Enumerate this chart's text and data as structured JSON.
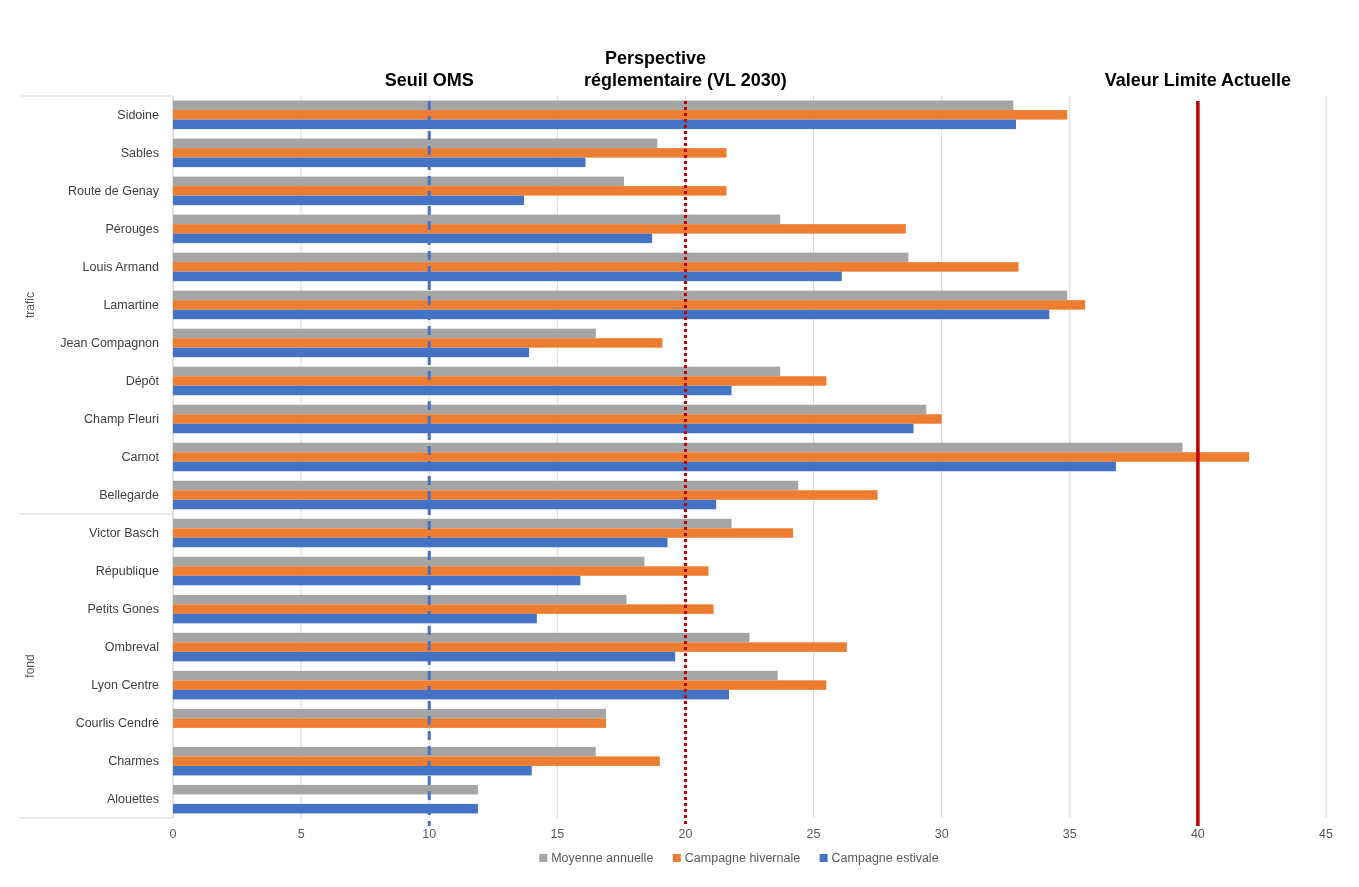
{
  "chart_data": {
    "type": "bar",
    "orientation": "horizontal",
    "categories": [
      "Sidoine",
      "Sables",
      "Route de Genay",
      "Pérouges",
      "Louis Armand",
      "Lamartine",
      "Jean Compagnon",
      "Dépôt",
      "Champ Fleuri",
      "Carnot",
      "Bellegarde",
      "Victor Basch",
      "République",
      "Petits Gones",
      "Ombreval",
      "Lyon Centre",
      "Courlis Cendré",
      "Charmes",
      "Alouettes"
    ],
    "series": [
      {
        "name": "Moyenne annuelle",
        "color": "#a5a5a5",
        "values": [
          32.8,
          18.9,
          17.6,
          23.7,
          28.7,
          34.9,
          16.5,
          23.7,
          29.4,
          39.4,
          24.4,
          21.8,
          18.4,
          17.7,
          22.5,
          23.6,
          16.9,
          16.5,
          11.9
        ]
      },
      {
        "name": "Campagne hivernale",
        "color": "#ed7d31",
        "values": [
          34.9,
          21.6,
          21.6,
          28.6,
          33.0,
          35.6,
          19.1,
          25.5,
          30.0,
          42.0,
          27.5,
          24.2,
          20.9,
          21.1,
          26.3,
          25.5,
          16.9,
          19.0,
          null
        ]
      },
      {
        "name": "Campagne estivale",
        "color": "#4472c4",
        "values": [
          32.9,
          16.1,
          13.7,
          18.7,
          26.1,
          34.2,
          13.9,
          21.8,
          28.9,
          36.8,
          21.2,
          19.3,
          15.9,
          14.2,
          19.6,
          21.7,
          null,
          14.0,
          11.9
        ]
      }
    ],
    "xlim": [
      0,
      45
    ],
    "xticks": [
      0,
      5,
      10,
      15,
      20,
      25,
      30,
      35,
      40,
      45
    ],
    "grid": "x",
    "legend": "bottom",
    "ref_lines": [
      {
        "axis": "x",
        "value": 10,
        "label": "Seuil OMS",
        "color": "#4472c4",
        "line_style": "dashed"
      },
      {
        "axis": "x",
        "value": 20,
        "label": "Perspective réglementaire (VL 2030)",
        "color": "#c00000",
        "line_style": "dotted"
      },
      {
        "axis": "x",
        "value": 40,
        "label": "Valeur Limite Actuelle",
        "color": "#c00000",
        "line_style": "solid"
      }
    ],
    "annotations": [
      "trafic",
      "fond"
    ]
  }
}
